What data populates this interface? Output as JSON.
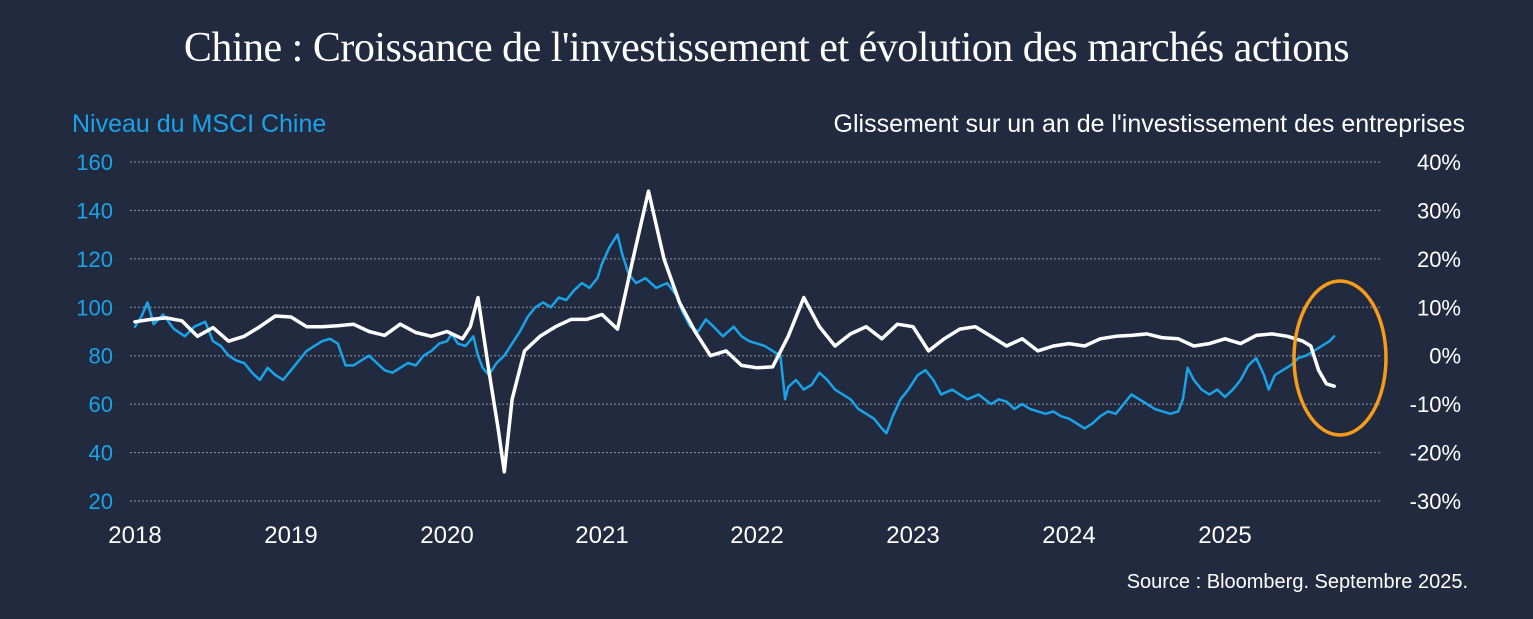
{
  "chart_data": {
    "type": "line",
    "title": "Chine : Croissance de l'investissement et évolution des marchés actions",
    "y_left_label": "Niveau du MSCI Chine",
    "y_right_label": "Glissement sur un an de l'investissement des entreprises",
    "source": "Source : Bloomberg. Septembre 2025.",
    "x_ticks": [
      "2018",
      "2019",
      "2020",
      "2021",
      "2022",
      "2023",
      "2024",
      "2025"
    ],
    "y_left_ticks": [
      "160",
      "140",
      "120",
      "100",
      "80",
      "60",
      "40",
      "20"
    ],
    "y_right_ticks": [
      "40%",
      "30%",
      "20%",
      "10%",
      "0%",
      "-10%",
      "-20%",
      "-30%"
    ],
    "y_left_range": [
      20,
      160
    ],
    "y_right_range": [
      -30,
      40
    ],
    "x_range": [
      2018.0,
      2025.8
    ],
    "grid": true,
    "highlight": "ellipse around the latest values (2025)",
    "colors": {
      "background": "#222a3f",
      "msci": "#1aa3e8",
      "investment": "#ffffff",
      "highlight": "#f59c1a",
      "grid": "#8a92a6"
    },
    "series": [
      {
        "name": "Niveau du MSCI Chine",
        "axis": "left",
        "color": "#1aa3e8",
        "points": [
          [
            2018.0,
            92
          ],
          [
            2018.04,
            96
          ],
          [
            2018.08,
            102
          ],
          [
            2018.12,
            93
          ],
          [
            2018.18,
            97
          ],
          [
            2018.25,
            91
          ],
          [
            2018.32,
            88
          ],
          [
            2018.38,
            92
          ],
          [
            2018.45,
            94
          ],
          [
            2018.5,
            86
          ],
          [
            2018.55,
            84
          ],
          [
            2018.6,
            80
          ],
          [
            2018.65,
            78
          ],
          [
            2018.7,
            77
          ],
          [
            2018.75,
            73
          ],
          [
            2018.8,
            70
          ],
          [
            2018.85,
            75
          ],
          [
            2018.9,
            72
          ],
          [
            2018.95,
            70
          ],
          [
            2019.0,
            74
          ],
          [
            2019.05,
            78
          ],
          [
            2019.1,
            82
          ],
          [
            2019.15,
            84
          ],
          [
            2019.2,
            86
          ],
          [
            2019.25,
            87
          ],
          [
            2019.3,
            85
          ],
          [
            2019.35,
            76
          ],
          [
            2019.4,
            76
          ],
          [
            2019.45,
            78
          ],
          [
            2019.5,
            80
          ],
          [
            2019.55,
            77
          ],
          [
            2019.6,
            74
          ],
          [
            2019.65,
            73
          ],
          [
            2019.7,
            75
          ],
          [
            2019.75,
            77
          ],
          [
            2019.8,
            76
          ],
          [
            2019.85,
            80
          ],
          [
            2019.9,
            82
          ],
          [
            2019.95,
            85
          ],
          [
            2020.0,
            86
          ],
          [
            2020.03,
            89
          ],
          [
            2020.07,
            85
          ],
          [
            2020.12,
            84
          ],
          [
            2020.17,
            88
          ],
          [
            2020.2,
            80
          ],
          [
            2020.23,
            75
          ],
          [
            2020.27,
            72
          ],
          [
            2020.32,
            77
          ],
          [
            2020.37,
            80
          ],
          [
            2020.42,
            85
          ],
          [
            2020.47,
            90
          ],
          [
            2020.52,
            96
          ],
          [
            2020.57,
            100
          ],
          [
            2020.62,
            102
          ],
          [
            2020.67,
            100
          ],
          [
            2020.72,
            104
          ],
          [
            2020.77,
            103
          ],
          [
            2020.82,
            107
          ],
          [
            2020.87,
            110
          ],
          [
            2020.92,
            108
          ],
          [
            2020.97,
            112
          ],
          [
            2021.0,
            118
          ],
          [
            2021.05,
            125
          ],
          [
            2021.1,
            130
          ],
          [
            2021.13,
            122
          ],
          [
            2021.17,
            114
          ],
          [
            2021.22,
            110
          ],
          [
            2021.28,
            112
          ],
          [
            2021.35,
            108
          ],
          [
            2021.42,
            110
          ],
          [
            2021.48,
            105
          ],
          [
            2021.52,
            98
          ],
          [
            2021.57,
            92
          ],
          [
            2021.62,
            90
          ],
          [
            2021.67,
            95
          ],
          [
            2021.72,
            92
          ],
          [
            2021.78,
            88
          ],
          [
            2021.85,
            92
          ],
          [
            2021.9,
            88
          ],
          [
            2021.95,
            86
          ],
          [
            2022.0,
            85
          ],
          [
            2022.05,
            84
          ],
          [
            2022.1,
            82
          ],
          [
            2022.15,
            80
          ],
          [
            2022.18,
            62
          ],
          [
            2022.2,
            67
          ],
          [
            2022.25,
            70
          ],
          [
            2022.3,
            66
          ],
          [
            2022.35,
            68
          ],
          [
            2022.4,
            73
          ],
          [
            2022.45,
            70
          ],
          [
            2022.5,
            66
          ],
          [
            2022.55,
            64
          ],
          [
            2022.6,
            62
          ],
          [
            2022.65,
            58
          ],
          [
            2022.7,
            56
          ],
          [
            2022.75,
            54
          ],
          [
            2022.8,
            50
          ],
          [
            2022.83,
            48
          ],
          [
            2022.87,
            55
          ],
          [
            2022.92,
            62
          ],
          [
            2022.97,
            66
          ],
          [
            2023.03,
            72
          ],
          [
            2023.08,
            74
          ],
          [
            2023.13,
            70
          ],
          [
            2023.18,
            64
          ],
          [
            2023.25,
            66
          ],
          [
            2023.3,
            64
          ],
          [
            2023.35,
            62
          ],
          [
            2023.42,
            64
          ],
          [
            2023.5,
            60
          ],
          [
            2023.55,
            62
          ],
          [
            2023.6,
            61
          ],
          [
            2023.65,
            58
          ],
          [
            2023.7,
            60
          ],
          [
            2023.75,
            58
          ],
          [
            2023.8,
            57
          ],
          [
            2023.85,
            56
          ],
          [
            2023.9,
            57
          ],
          [
            2023.95,
            55
          ],
          [
            2024.0,
            54
          ],
          [
            2024.05,
            52
          ],
          [
            2024.1,
            50
          ],
          [
            2024.15,
            52
          ],
          [
            2024.2,
            55
          ],
          [
            2024.25,
            57
          ],
          [
            2024.3,
            56
          ],
          [
            2024.35,
            60
          ],
          [
            2024.4,
            64
          ],
          [
            2024.45,
            62
          ],
          [
            2024.5,
            60
          ],
          [
            2024.55,
            58
          ],
          [
            2024.6,
            57
          ],
          [
            2024.65,
            56
          ],
          [
            2024.7,
            57
          ],
          [
            2024.73,
            62
          ],
          [
            2024.76,
            75
          ],
          [
            2024.8,
            70
          ],
          [
            2024.85,
            66
          ],
          [
            2024.9,
            64
          ],
          [
            2024.95,
            66
          ],
          [
            2025.0,
            63
          ],
          [
            2025.05,
            66
          ],
          [
            2025.1,
            70
          ],
          [
            2025.15,
            76
          ],
          [
            2025.2,
            79
          ],
          [
            2025.25,
            72
          ],
          [
            2025.28,
            66
          ],
          [
            2025.32,
            72
          ],
          [
            2025.37,
            74
          ],
          [
            2025.42,
            76
          ],
          [
            2025.47,
            79
          ],
          [
            2025.52,
            80
          ],
          [
            2025.57,
            82
          ],
          [
            2025.62,
            84
          ],
          [
            2025.67,
            86
          ],
          [
            2025.7,
            88
          ]
        ]
      },
      {
        "name": "Glissement sur un an de l'investissement des entreprises",
        "axis": "right",
        "color": "#ffffff",
        "points": [
          [
            2018.0,
            7.0
          ],
          [
            2018.1,
            7.5
          ],
          [
            2018.2,
            7.8
          ],
          [
            2018.3,
            7.2
          ],
          [
            2018.4,
            4.0
          ],
          [
            2018.5,
            5.8
          ],
          [
            2018.6,
            3.0
          ],
          [
            2018.7,
            4.0
          ],
          [
            2018.8,
            6.0
          ],
          [
            2018.9,
            8.2
          ],
          [
            2019.0,
            8.0
          ],
          [
            2019.1,
            6.0
          ],
          [
            2019.2,
            6.0
          ],
          [
            2019.3,
            6.2
          ],
          [
            2019.4,
            6.5
          ],
          [
            2019.5,
            5.0
          ],
          [
            2019.6,
            4.2
          ],
          [
            2019.7,
            6.5
          ],
          [
            2019.8,
            4.8
          ],
          [
            2019.9,
            4.0
          ],
          [
            2020.0,
            5.0
          ],
          [
            2020.1,
            3.5
          ],
          [
            2020.15,
            6.0
          ],
          [
            2020.2,
            12.0
          ],
          [
            2020.27,
            -3.0
          ],
          [
            2020.33,
            -15.0
          ],
          [
            2020.37,
            -24.0
          ],
          [
            2020.42,
            -9.0
          ],
          [
            2020.5,
            1.0
          ],
          [
            2020.6,
            4.0
          ],
          [
            2020.7,
            6.0
          ],
          [
            2020.8,
            7.5
          ],
          [
            2020.9,
            7.5
          ],
          [
            2021.0,
            8.5
          ],
          [
            2021.1,
            5.5
          ],
          [
            2021.2,
            20.0
          ],
          [
            2021.3,
            34.0
          ],
          [
            2021.4,
            20.0
          ],
          [
            2021.5,
            11.0
          ],
          [
            2021.6,
            5.0
          ],
          [
            2021.7,
            0.0
          ],
          [
            2021.8,
            1.0
          ],
          [
            2021.9,
            -2.0
          ],
          [
            2022.0,
            -2.5
          ],
          [
            2022.1,
            -2.3
          ],
          [
            2022.2,
            4.0
          ],
          [
            2022.3,
            12.0
          ],
          [
            2022.4,
            6.0
          ],
          [
            2022.5,
            2.0
          ],
          [
            2022.6,
            4.5
          ],
          [
            2022.7,
            6.0
          ],
          [
            2022.8,
            3.5
          ],
          [
            2022.9,
            6.5
          ],
          [
            2023.0,
            6.0
          ],
          [
            2023.1,
            1.0
          ],
          [
            2023.2,
            3.5
          ],
          [
            2023.3,
            5.5
          ],
          [
            2023.4,
            6.0
          ],
          [
            2023.5,
            4.0
          ],
          [
            2023.6,
            2.0
          ],
          [
            2023.7,
            3.5
          ],
          [
            2023.8,
            1.0
          ],
          [
            2023.9,
            2.0
          ],
          [
            2024.0,
            2.5
          ],
          [
            2024.1,
            2.0
          ],
          [
            2024.2,
            3.5
          ],
          [
            2024.3,
            4.0
          ],
          [
            2024.4,
            4.2
          ],
          [
            2024.5,
            4.5
          ],
          [
            2024.6,
            3.7
          ],
          [
            2024.7,
            3.5
          ],
          [
            2024.8,
            2.0
          ],
          [
            2024.9,
            2.5
          ],
          [
            2025.0,
            3.5
          ],
          [
            2025.1,
            2.5
          ],
          [
            2025.2,
            4.2
          ],
          [
            2025.3,
            4.5
          ],
          [
            2025.4,
            4.0
          ],
          [
            2025.5,
            3.0
          ],
          [
            2025.55,
            2.0
          ],
          [
            2025.6,
            -3.0
          ],
          [
            2025.65,
            -5.8
          ],
          [
            2025.7,
            -6.3
          ]
        ]
      }
    ]
  }
}
